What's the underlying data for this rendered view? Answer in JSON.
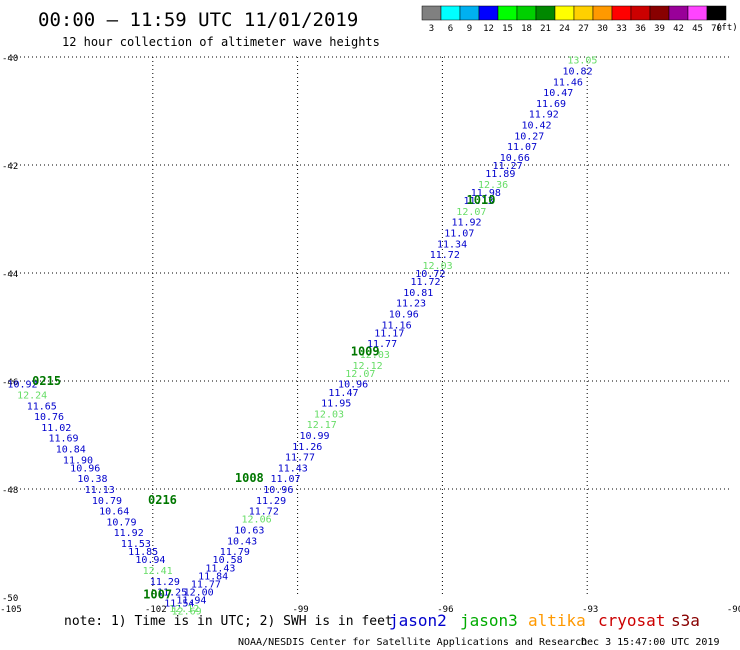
{
  "header": {
    "title": "00:00 – 11:59 UTC 11/01/2019",
    "subtitle": "12 hour collection of altimeter wave heights"
  },
  "scale": {
    "unit": "(ft)",
    "bins": [
      {
        "label": "3",
        "color": "#808080"
      },
      {
        "label": "6",
        "color": "#00ffff"
      },
      {
        "label": "9",
        "color": "#00b0f0"
      },
      {
        "label": "12",
        "color": "#0000ff"
      },
      {
        "label": "15",
        "color": "#00ff00"
      },
      {
        "label": "18",
        "color": "#00d000"
      },
      {
        "label": "21",
        "color": "#008800"
      },
      {
        "label": "24",
        "color": "#ffff00"
      },
      {
        "label": "27",
        "color": "#ffd000"
      },
      {
        "label": "30",
        "color": "#ff9900"
      },
      {
        "label": "33",
        "color": "#ff0000"
      },
      {
        "label": "36",
        "color": "#cc0000"
      },
      {
        "label": "39",
        "color": "#880000"
      },
      {
        "label": "42",
        "color": "#990099"
      },
      {
        "label": "45",
        "color": "#ff44ff"
      },
      {
        "label": "70",
        "color": "#000000"
      }
    ]
  },
  "footer": {
    "note": "note: 1) Time is in UTC; 2) SWH is in feet",
    "credit": "NOAA/NESDIS Center for Satellite Applications and Research",
    "timestamp": "Dec  3 15:47:00 UTC 2019"
  },
  "legend": [
    {
      "name": "jason2",
      "color": "#0000cc"
    },
    {
      "name": "jason3",
      "color": "#00aa00"
    },
    {
      "name": "altika",
      "color": "#ff9900"
    },
    {
      "name": "cryosat",
      "color": "#cc0000"
    },
    {
      "name": "s3a",
      "color": "#880000"
    }
  ],
  "chart_data": {
    "type": "scatter",
    "xlim": [
      -105,
      -90
    ],
    "ylim": [
      -50,
      -40
    ],
    "x_ticks": [
      -105,
      -102,
      -99,
      -96,
      -93,
      -90
    ],
    "y_ticks": [
      -40,
      -42,
      -44,
      -46,
      -48,
      -50
    ],
    "grid": true,
    "colors": {
      "jason2": "#0000cc",
      "jason3_light": "#66dd66",
      "pass_label": "#007700"
    },
    "pass_labels": [
      {
        "text": "1010",
        "lon": -95.2,
        "lat": -42.65
      },
      {
        "text": "1009",
        "lon": -97.6,
        "lat": -45.45
      },
      {
        "text": "0215",
        "lon": -104.2,
        "lat": -46.0
      },
      {
        "text": "1008",
        "lon": -100.0,
        "lat": -47.8
      },
      {
        "text": "0216",
        "lon": -101.8,
        "lat": -48.2
      },
      {
        "text": "1007",
        "lon": -101.9,
        "lat": -49.95
      }
    ],
    "series": [
      {
        "name": "pass 1010",
        "points": [
          {
            "lon": -93.1,
            "lat": -40.05,
            "v": "13.05",
            "light": true
          },
          {
            "lon": -93.2,
            "lat": -40.25,
            "v": "10.82"
          },
          {
            "lon": -93.4,
            "lat": -40.45,
            "v": "11.46"
          },
          {
            "lon": -93.6,
            "lat": -40.65,
            "v": "10.47"
          },
          {
            "lon": -93.75,
            "lat": -40.85,
            "v": "11.69"
          },
          {
            "lon": -93.9,
            "lat": -41.05,
            "v": "11.92"
          },
          {
            "lon": -94.05,
            "lat": -41.25,
            "v": "10.42"
          },
          {
            "lon": -94.2,
            "lat": -41.45,
            "v": "10.27"
          },
          {
            "lon": -94.35,
            "lat": -41.65,
            "v": "11.07"
          },
          {
            "lon": -94.5,
            "lat": -41.85,
            "v": "10.66"
          },
          {
            "lon": -94.65,
            "lat": -42.0,
            "v": "11.27"
          },
          {
            "lon": -94.8,
            "lat": -42.15,
            "v": "11.89"
          },
          {
            "lon": -94.95,
            "lat": -42.35,
            "v": "12.36",
            "light": true
          },
          {
            "lon": -95.1,
            "lat": -42.5,
            "v": "11.98"
          },
          {
            "lon": -95.25,
            "lat": -42.65,
            "v": "11.13"
          },
          {
            "lon": -95.4,
            "lat": -42.85,
            "v": "12.07",
            "light": true
          },
          {
            "lon": -95.5,
            "lat": -43.05,
            "v": "11.92"
          },
          {
            "lon": -95.65,
            "lat": -43.25,
            "v": "11.07"
          },
          {
            "lon": -95.8,
            "lat": -43.45,
            "v": "11.34"
          },
          {
            "lon": -95.95,
            "lat": -43.65,
            "v": "11.72"
          },
          {
            "lon": -96.1,
            "lat": -43.85,
            "v": "12.03",
            "light": true
          },
          {
            "lon": -96.25,
            "lat": -44.0,
            "v": "10.72"
          }
        ]
      },
      {
        "name": "pass 1009",
        "points": [
          {
            "lon": -96.35,
            "lat": -44.15,
            "v": "11.72"
          },
          {
            "lon": -96.5,
            "lat": -44.35,
            "v": "10.81"
          },
          {
            "lon": -96.65,
            "lat": -44.55,
            "v": "11.23"
          },
          {
            "lon": -96.8,
            "lat": -44.75,
            "v": "10.96"
          },
          {
            "lon": -96.95,
            "lat": -44.95,
            "v": "11.16"
          },
          {
            "lon": -97.1,
            "lat": -45.1,
            "v": "11.17"
          },
          {
            "lon": -97.25,
            "lat": -45.3,
            "v": "11.77"
          },
          {
            "lon": -97.4,
            "lat": -45.5,
            "v": "12.03",
            "light": true
          },
          {
            "lon": -97.55,
            "lat": -45.7,
            "v": "12.12",
            "light": true
          },
          {
            "lon": -97.7,
            "lat": -45.85,
            "v": "12.07",
            "light": true
          },
          {
            "lon": -97.85,
            "lat": -46.05,
            "v": "10.96"
          }
        ]
      },
      {
        "name": "pass 1008",
        "points": [
          {
            "lon": -98.05,
            "lat": -46.2,
            "v": "11.47"
          },
          {
            "lon": -98.2,
            "lat": -46.4,
            "v": "11.95"
          },
          {
            "lon": -98.35,
            "lat": -46.6,
            "v": "12.03",
            "light": true
          },
          {
            "lon": -98.5,
            "lat": -46.8,
            "v": "12.17",
            "light": true
          },
          {
            "lon": -98.65,
            "lat": -47.0,
            "v": "10.99"
          },
          {
            "lon": -98.8,
            "lat": -47.2,
            "v": "11.26"
          },
          {
            "lon": -98.95,
            "lat": -47.4,
            "v": "11.77"
          },
          {
            "lon": -99.1,
            "lat": -47.6,
            "v": "11.43"
          },
          {
            "lon": -99.25,
            "lat": -47.8,
            "v": "11.07"
          },
          {
            "lon": -99.4,
            "lat": -48.0,
            "v": "10.96"
          },
          {
            "lon": -99.55,
            "lat": -48.2,
            "v": "11.29"
          },
          {
            "lon": -99.7,
            "lat": -48.4,
            "v": "11.72"
          }
        ]
      },
      {
        "name": "pass 1007",
        "points": [
          {
            "lon": -99.85,
            "lat": -48.55,
            "v": "12.06",
            "light": true
          },
          {
            "lon": -100.0,
            "lat": -48.75,
            "v": "10.63"
          },
          {
            "lon": -100.15,
            "lat": -48.95,
            "v": "10.43"
          },
          {
            "lon": -100.3,
            "lat": -49.15,
            "v": "11.79"
          },
          {
            "lon": -100.45,
            "lat": -49.3,
            "v": "10.58"
          },
          {
            "lon": -100.6,
            "lat": -49.45,
            "v": "11.43"
          },
          {
            "lon": -100.75,
            "lat": -49.6,
            "v": "11.84"
          },
          {
            "lon": -100.9,
            "lat": -49.75,
            "v": "11.77"
          },
          {
            "lon": -101.05,
            "lat": -49.9,
            "v": "12.00"
          },
          {
            "lon": -101.2,
            "lat": -50.05,
            "v": "11.94"
          },
          {
            "lon": -101.35,
            "lat": -50.2,
            "v": "12.12",
            "light": true
          }
        ]
      },
      {
        "name": "pass 0215",
        "points": [
          {
            "lon": -104.7,
            "lat": -46.05,
            "v": "10.92"
          },
          {
            "lon": -104.5,
            "lat": -46.25,
            "v": "12.24",
            "light": true
          },
          {
            "lon": -104.3,
            "lat": -46.45,
            "v": "11.65"
          },
          {
            "lon": -104.15,
            "lat": -46.65,
            "v": "10.76"
          },
          {
            "lon": -104.0,
            "lat": -46.85,
            "v": "11.02"
          },
          {
            "lon": -103.85,
            "lat": -47.05,
            "v": "11.69"
          },
          {
            "lon": -103.7,
            "lat": -47.25,
            "v": "10.84"
          },
          {
            "lon": -103.55,
            "lat": -47.45,
            "v": "11.90"
          },
          {
            "lon": -103.4,
            "lat": -47.6,
            "v": "10.96"
          },
          {
            "lon": -103.25,
            "lat": -47.8,
            "v": "10.38"
          },
          {
            "lon": -103.1,
            "lat": -48.0,
            "v": "11.13"
          },
          {
            "lon": -102.95,
            "lat": -48.2,
            "v": "10.79"
          }
        ]
      },
      {
        "name": "pass 0216",
        "points": [
          {
            "lon": -102.8,
            "lat": -48.4,
            "v": "10.64"
          },
          {
            "lon": -102.65,
            "lat": -48.6,
            "v": "10.79"
          },
          {
            "lon": -102.5,
            "lat": -48.8,
            "v": "11.92"
          },
          {
            "lon": -102.35,
            "lat": -49.0,
            "v": "11.53"
          },
          {
            "lon": -102.2,
            "lat": -49.15,
            "v": "11.85"
          },
          {
            "lon": -102.05,
            "lat": -49.3,
            "v": "10.94"
          },
          {
            "lon": -101.9,
            "lat": -49.5,
            "v": "12.41",
            "light": true
          },
          {
            "lon": -101.75,
            "lat": -49.7,
            "v": "11.29"
          },
          {
            "lon": -101.6,
            "lat": -49.9,
            "v": "11.25"
          },
          {
            "lon": -101.45,
            "lat": -50.1,
            "v": "11.54"
          },
          {
            "lon": -101.3,
            "lat": -50.25,
            "v": "12.69",
            "light": true
          }
        ]
      }
    ]
  }
}
